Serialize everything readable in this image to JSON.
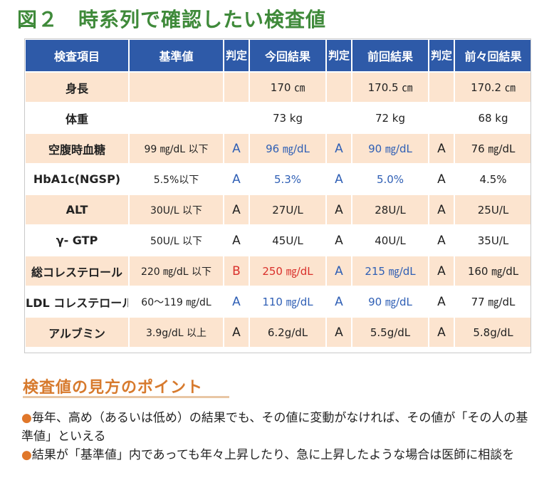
{
  "figure": {
    "number": "図２",
    "title": "時系列で確認したい検査値"
  },
  "table": {
    "headers": {
      "item": "検査項目",
      "standard": "基準値",
      "judge": "判定",
      "current": "今回結果",
      "previous": "前回結果",
      "before_previous": "前々回結果"
    },
    "rows": [
      {
        "name": "身長",
        "standard": "",
        "j1": "",
        "cur": "170 ㎝",
        "j2": "",
        "prev": "170.5 ㎝",
        "j3": "",
        "prev2": "170.2 ㎝",
        "j1_color": "black",
        "cur_color": "black",
        "j2_color": "black",
        "prev_color": "black",
        "j3_color": "black",
        "prev2_color": "black"
      },
      {
        "name": "体重",
        "standard": "",
        "j1": "",
        "cur": "73 kg",
        "j2": "",
        "prev": "72 kg",
        "j3": "",
        "prev2": "68 kg",
        "j1_color": "black",
        "cur_color": "black",
        "j2_color": "black",
        "prev_color": "black",
        "j3_color": "black",
        "prev2_color": "black"
      },
      {
        "name": "空腹時血糖",
        "standard": "99 ㎎/dL 以下",
        "j1": "A",
        "cur": "96 ㎎/dL",
        "j2": "A",
        "prev": "90 ㎎/dL",
        "j3": "A",
        "prev2": "76 ㎎/dL",
        "j1_color": "blue",
        "cur_color": "blue",
        "j2_color": "blue",
        "prev_color": "blue",
        "j3_color": "black",
        "prev2_color": "black"
      },
      {
        "name": "HbA1c(NGSP)",
        "standard": "5.5%以下",
        "j1": "A",
        "cur": "5.3%",
        "j2": "A",
        "prev": "5.0%",
        "j3": "A",
        "prev2": "4.5%",
        "j1_color": "blue",
        "cur_color": "blue",
        "j2_color": "blue",
        "prev_color": "blue",
        "j3_color": "black",
        "prev2_color": "black"
      },
      {
        "name": "ALT",
        "standard": "30U/L 以下",
        "j1": "A",
        "cur": "27U/L",
        "j2": "A",
        "prev": "28U/L",
        "j3": "A",
        "prev2": "25U/L",
        "j1_color": "black",
        "cur_color": "black",
        "j2_color": "black",
        "prev_color": "black",
        "j3_color": "black",
        "prev2_color": "black"
      },
      {
        "name": "γ- GTP",
        "standard": "50U/L 以下",
        "j1": "A",
        "cur": "45U/L",
        "j2": "A",
        "prev": "40U/L",
        "j3": "A",
        "prev2": "35U/L",
        "j1_color": "black",
        "cur_color": "black",
        "j2_color": "black",
        "prev_color": "black",
        "j3_color": "black",
        "prev2_color": "black"
      },
      {
        "name": "総コレステロール",
        "standard": "220 ㎎/dL 以下",
        "j1": "B",
        "cur": "250 ㎎/dL",
        "j2": "A",
        "prev": "215 ㎎/dL",
        "j3": "A",
        "prev2": "160 ㎎/dL",
        "j1_color": "red",
        "cur_color": "red",
        "j2_color": "blue",
        "prev_color": "blue",
        "j3_color": "black",
        "prev2_color": "black"
      },
      {
        "name": "LDL コレステロール",
        "standard": "60～119 ㎎/dL",
        "j1": "A",
        "cur": "110 ㎎/dL",
        "j2": "A",
        "prev": "90 ㎎/dL",
        "j3": "A",
        "prev2": "77 ㎎/dL",
        "j1_color": "blue",
        "cur_color": "blue",
        "j2_color": "blue",
        "prev_color": "blue",
        "j3_color": "black",
        "prev2_color": "black"
      },
      {
        "name": "アルブミン",
        "standard": "3.9g/dL 以上",
        "j1": "A",
        "cur": "6.2g/dL",
        "j2": "A",
        "prev": "5.5g/dL",
        "j3": "A",
        "prev2": "5.8g/dL",
        "j1_color": "black",
        "cur_color": "black",
        "j2_color": "black",
        "prev_color": "black",
        "j3_color": "black",
        "prev2_color": "black"
      }
    ]
  },
  "points": {
    "heading": "検査値の見方のポイント",
    "bullet_glyph": "●",
    "items": [
      "毎年、高め（あるいは低め）の結果でも、その値に変動がなければ、その値が「その人の基準値」といえる",
      "結果が「基準値」内であっても年々上昇したり、急に上昇したような場合は医師に相談を"
    ]
  },
  "colors": {
    "title_green": "#3f8a3a",
    "header_blue": "#2e5aa8",
    "row_peach": "#fce4cf",
    "value_blue": "#2f5fb5",
    "value_red": "#d9302b",
    "heading_orange": "#d77a2d"
  }
}
